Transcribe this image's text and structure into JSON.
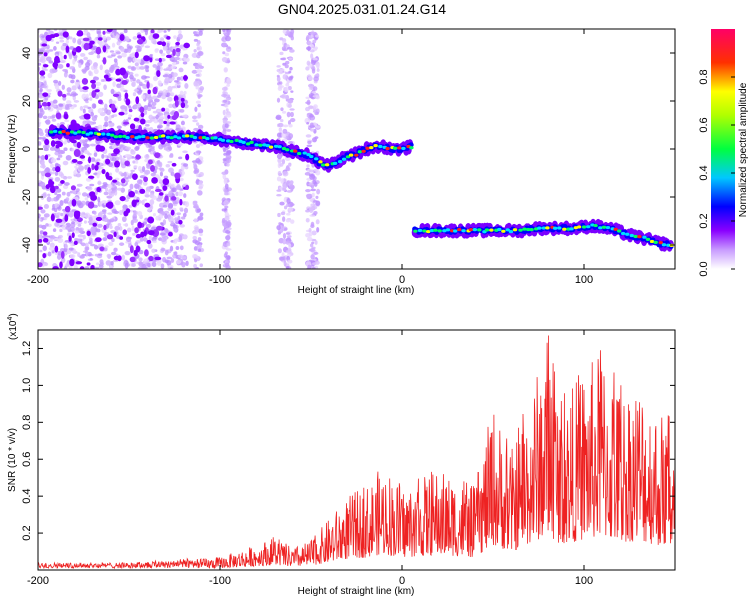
{
  "title": "GN04.2025.031.01.24.G14",
  "chart_data": [
    {
      "type": "heatmap",
      "xlabel": "Height of straight line (km)",
      "ylabel": "Frequency (Hz)",
      "xlim": [
        -200,
        150
      ],
      "ylim": [
        -50,
        50
      ],
      "xticks": [
        -200,
        -100,
        0,
        100
      ],
      "yticks": [
        -40,
        -20,
        0,
        20,
        40
      ],
      "colorbar": {
        "label": "Normalized spectral amplitude",
        "range": [
          0,
          1
        ],
        "ticks": [
          "0.0",
          "0.2",
          "0.4",
          "0.6",
          "0.8"
        ],
        "colormap": "rainbow",
        "colors": [
          "#ffffff",
          "#8a00ff",
          "#0000ff",
          "#00ffff",
          "#00ff00",
          "#ffff00",
          "#ff0000",
          "#ff0060"
        ]
      },
      "ridges": [
        {
          "name": "",
          "x": [
            -193,
            -180,
            -165,
            -150,
            -135,
            -120,
            -110,
            -100,
            -90,
            -80,
            -70,
            -60,
            -50,
            -45,
            -40,
            -35,
            -30,
            -25,
            -20,
            -15,
            -10,
            -5,
            0,
            5
          ],
          "y": [
            7,
            7,
            6,
            5,
            5,
            5,
            5,
            4,
            3,
            2,
            1,
            -1,
            -3,
            -6,
            -7,
            -5,
            -3,
            -2,
            0,
            1,
            1,
            0,
            0,
            1
          ]
        },
        {
          "name": "",
          "x": [
            7,
            15,
            25,
            35,
            45,
            55,
            65,
            75,
            85,
            95,
            105,
            112,
            118,
            125,
            132,
            140,
            148
          ],
          "y": [
            -34,
            -34,
            -34,
            -34,
            -34,
            -34,
            -34,
            -33,
            -33,
            -33,
            -32,
            -33,
            -34,
            -36,
            -37,
            -39,
            -40
          ]
        }
      ]
    },
    {
      "type": "line",
      "xlabel": "Height of straight line (km)",
      "ylabel": "SNR (10 * v/v)",
      "yscale_label": "(x10",
      "yscale_exponent": "4",
      "yscale_close": ")",
      "xlim": [
        -200,
        150
      ],
      "ylim": [
        0,
        1.3
      ],
      "xticks": [
        -200,
        -100,
        0,
        100
      ],
      "yticks": [
        0.2,
        0.4,
        0.6,
        0.8,
        1.0,
        1.2
      ],
      "ytick_labels": [
        "0.2",
        "0.4",
        "0.6",
        "0.8",
        "1.0",
        "1.2"
      ],
      "color": "#ee2222",
      "envelope": {
        "x": [
          -200,
          -150,
          -120,
          -100,
          -85,
          -70,
          -60,
          -50,
          -40,
          -30,
          -20,
          -10,
          0,
          10,
          20,
          30,
          40,
          50,
          60,
          70,
          75,
          80,
          85,
          90,
          100,
          110,
          120,
          130,
          140,
          150
        ],
        "y": [
          0.03,
          0.03,
          0.05,
          0.07,
          0.12,
          0.18,
          0.12,
          0.16,
          0.28,
          0.4,
          0.45,
          0.58,
          0.45,
          0.5,
          0.55,
          0.5,
          0.45,
          0.9,
          0.65,
          0.95,
          1.1,
          1.3,
          1.0,
          0.95,
          1.1,
          1.2,
          1.0,
          1.05,
          0.9,
          0.8
        ]
      }
    }
  ]
}
